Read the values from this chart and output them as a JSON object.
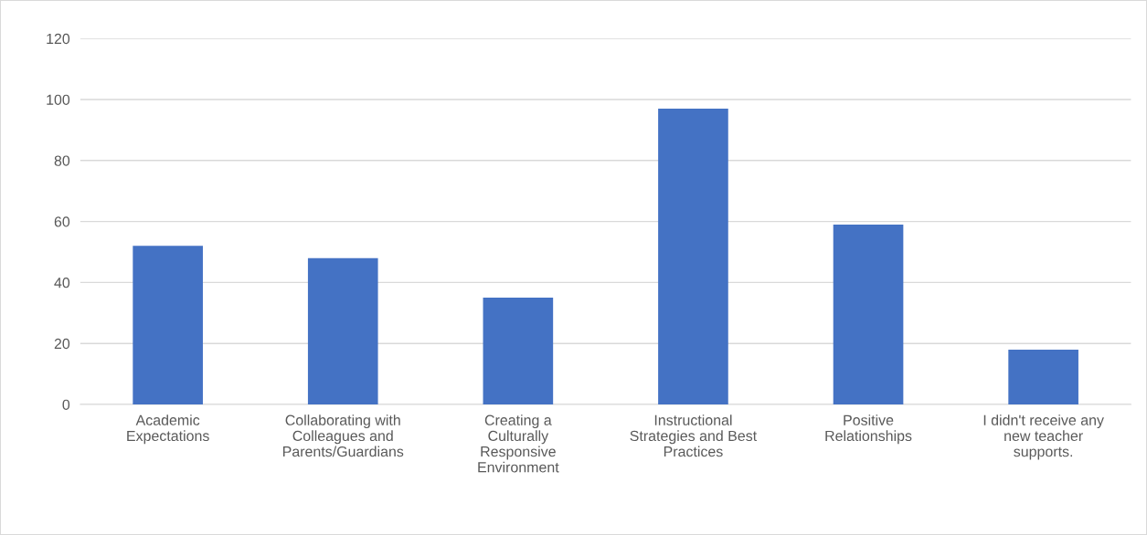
{
  "chart_data": {
    "type": "bar",
    "categories": [
      "Academic\nExpectations",
      "Collaborating with\nColleagues and\nParents/Guardians",
      "Creating a\nCulturally\nResponsive\nEnvironment",
      "Instructional\nStrategies and Best\nPractices",
      "Positive\nRelationships",
      "I didn't receive any\nnew teacher\nsupports."
    ],
    "values": [
      52,
      48,
      35,
      97,
      59,
      18
    ],
    "color": "#4472c4",
    "ylim": [
      0,
      120
    ],
    "yticks": [
      0,
      20,
      40,
      60,
      80,
      100,
      120
    ],
    "grid": "y",
    "legend": false
  }
}
